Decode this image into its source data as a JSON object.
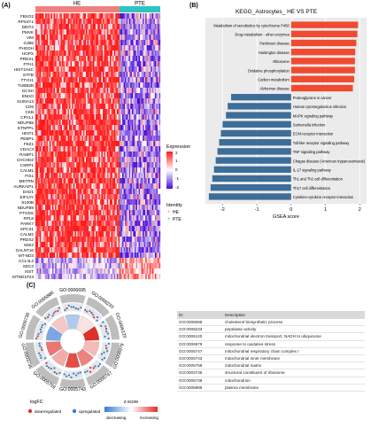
{
  "panels": {
    "a": "(A)",
    "b": "(B)",
    "c": "(C)"
  },
  "heatmap": {
    "groups": [
      "HE",
      "PTE"
    ],
    "genes": [
      "FBXO2",
      "RPS4Y1",
      "DDIT4",
      "PMVK",
      "VIM",
      "GJB6",
      "PHGDH",
      "HOPX",
      "PRDX1",
      "FTH1",
      "HIST1H4C",
      "ETFB",
      "TTYH1",
      "TUBB2B",
      "GCSH",
      "ENHO",
      "S100A13",
      "CD9",
      "CKB",
      "CRYL1",
      "NDUFB5",
      "ETNPPL",
      "HINT1",
      "PEBP1",
      "FEZ1",
      "VDAC3",
      "RAMP1",
      "CHCHD2",
      "CSRP1",
      "CALM1",
      "FIS1",
      "METRN",
      "AURKAIP1",
      "DAD1",
      "EIF1AY",
      "S100B",
      "NDUFB9",
      "PTGDS",
      "RPL8",
      "PARK7",
      "SPCS1",
      "CALM2",
      "PRDX2",
      "MSI2",
      "GALNT16",
      "MT-ND3",
      "CCL4L2",
      "SDC3",
      "XIST",
      "MTND1P23"
    ],
    "legend_title": "Expression",
    "legend_ticks": [
      "2",
      "1",
      "0",
      "-1",
      "-2"
    ],
    "identity_title": "Identity",
    "identity_items": [
      "HE",
      "PTE"
    ],
    "colors": {
      "he": "#f08080",
      "pte": "#2ec4c4",
      "high": "#ff1a1a",
      "low": "#4b0bd6",
      "mid": "#ffffff"
    }
  },
  "chart_data": {
    "type": "bar",
    "title": "KEGG_Astrocytes_ HE VS PTE",
    "xlabel": "GSEA score",
    "xlim": [
      -2.5,
      2.2
    ],
    "xticks": [
      "-2",
      "-1",
      "0",
      "1",
      "2"
    ],
    "categories": [
      "Metabolism of xenobiotics by cytochrome P450",
      "Drug metabolism - other enzymes",
      "Parkinson disease",
      "Huntington disease",
      "Ribosome",
      "Oxidative phosphorylation",
      "Carbon metabolism",
      "Alzheimer disease",
      "Proteoglycans in cancer",
      "Human cytomegalovirus infection",
      "MAPK signaling pathway",
      "Salmonella infection",
      "ECM-receptor interaction",
      "Toll-like receptor signaling pathway",
      "TNF signaling pathway",
      "Chagas disease (American trypanosomiasis)",
      "IL-17 signaling pathway",
      "Th1 and Th2 cell differentiation",
      "Th17 cell differentiation",
      "Cytokine-cytokine receptor interaction"
    ],
    "values": [
      1.95,
      1.93,
      1.9,
      1.87,
      1.86,
      1.86,
      1.84,
      1.8,
      -1.75,
      -1.85,
      -1.9,
      -2.0,
      -2.05,
      -2.1,
      -2.15,
      -2.2,
      -2.25,
      -2.3,
      -2.35,
      -2.4
    ],
    "colors": {
      "positive": "#f04a30",
      "negative": "#3d6d99"
    }
  },
  "chord": {
    "terms": [
      "GO:0006695",
      "GO:0008233",
      "GO:0006120",
      "GO:0006979",
      "GO:0005747",
      "GO:0005743",
      "GO:0005759",
      "GO:0003735",
      "GO:0005739",
      "GO:0005886"
    ],
    "zscores": [
      -0.6,
      0.2,
      1.5,
      0.5,
      0.9,
      1.3,
      0.6,
      1.0,
      -1.0,
      0.4
    ],
    "logfc_title": "logFC",
    "logfc_items": [
      "downregulated",
      "upregulated"
    ],
    "zscore_title": "z-score",
    "zscore_labels": [
      "decreasing",
      "increasing"
    ]
  },
  "go_table": {
    "headers": [
      "ID",
      "Description"
    ],
    "rows": [
      {
        "id": "GO:0006695",
        "desc": "cholesterol biosynthetic process"
      },
      {
        "id": "GO:0008233",
        "desc": "peptidase activity"
      },
      {
        "id": "GO:0006120",
        "desc": "mitochondrial electron transport, NADH to ubiquinone"
      },
      {
        "id": "GO:0006979",
        "desc": "response to oxidative stress"
      },
      {
        "id": "GO:0005747",
        "desc": "mitochondrial respiratory chain complex I"
      },
      {
        "id": "GO:0005743",
        "desc": "mitochondrial inner membrane"
      },
      {
        "id": "GO:0005759",
        "desc": "mitochondrial matrix"
      },
      {
        "id": "GO:0003735",
        "desc": "structural constituent of ribosome"
      },
      {
        "id": "GO:0005739",
        "desc": "mitochondrion"
      },
      {
        "id": "GO:0005886",
        "desc": "plasma membrane"
      }
    ]
  }
}
